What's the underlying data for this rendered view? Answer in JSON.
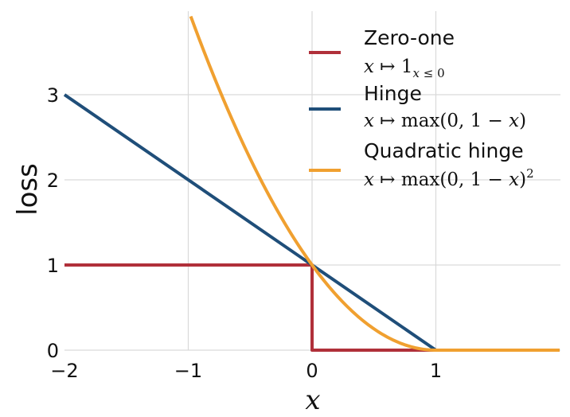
{
  "chart_data": {
    "type": "line",
    "xlabel": "x",
    "ylabel": "loss",
    "xlim": [
      -2,
      2
    ],
    "ylim": [
      0,
      3.9
    ],
    "xticks": [
      -2,
      -1,
      0,
      1
    ],
    "xtick_labels": [
      "−2",
      "−1",
      "0",
      "1"
    ],
    "yticks": [
      0,
      1,
      2,
      3
    ],
    "ytick_labels": [
      "0",
      "1",
      "2",
      "3"
    ],
    "grid": true,
    "legend_position": "top-right",
    "series": [
      {
        "name": "Zero-one",
        "formula": "x ↦ 1_{x ≤ 0}",
        "color": "#b0303a",
        "x": [
          -2,
          0,
          0,
          2
        ],
        "y": [
          1,
          1,
          0,
          0
        ]
      },
      {
        "name": "Hinge",
        "formula": "x ↦ max(0, 1 − x)",
        "color": "#1f4e79",
        "x": [
          -2,
          1,
          2
        ],
        "y": [
          3,
          0,
          0
        ]
      },
      {
        "name": "Quadratic hinge",
        "formula": "x ↦ max(0, 1 − x)²",
        "color": "#f0a030",
        "x": [
          -0.98,
          -0.8,
          -0.6,
          -0.4,
          -0.2,
          0,
          0.2,
          0.4,
          0.6,
          0.8,
          1,
          2
        ],
        "y": [
          3.92,
          3.24,
          2.56,
          1.96,
          1.44,
          1,
          0.64,
          0.36,
          0.16,
          0.04,
          0,
          0
        ]
      }
    ]
  }
}
